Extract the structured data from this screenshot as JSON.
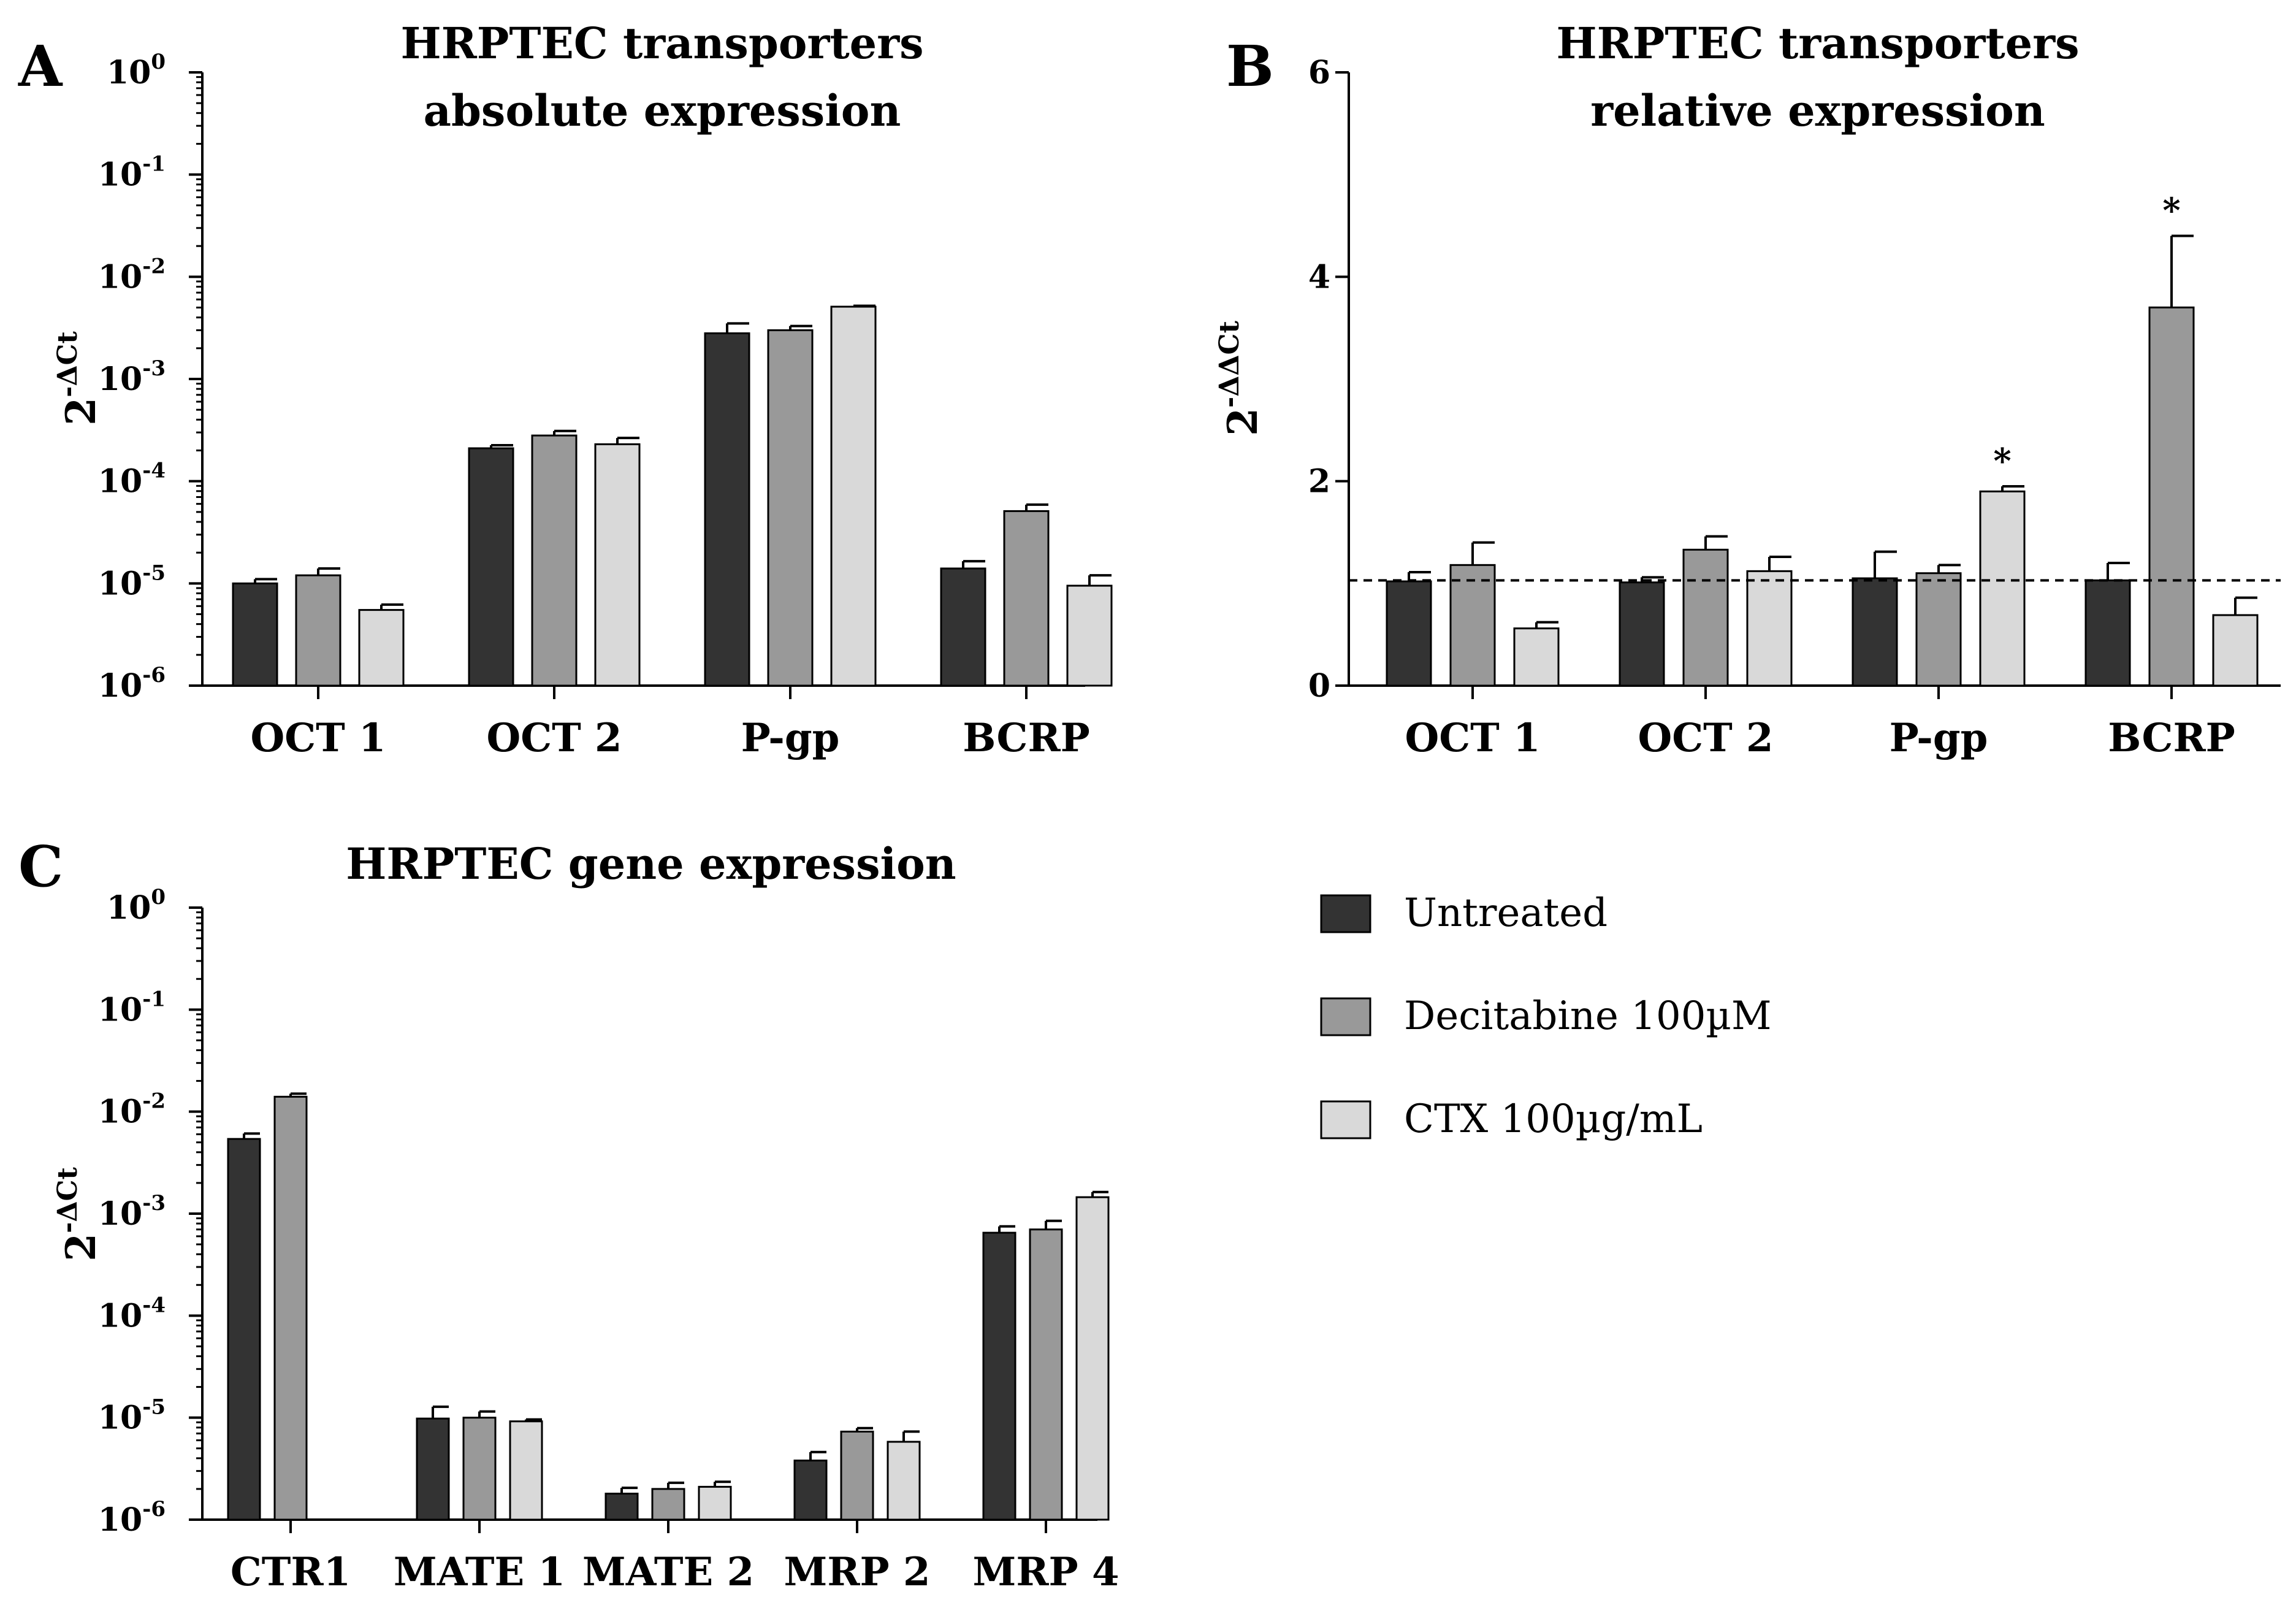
{
  "legend": [
    {
      "label": "Untreated",
      "color": "#333333"
    },
    {
      "label": "Decitabine 100µM",
      "color": "#999999"
    },
    {
      "label": "CTX 100µg/mL",
      "color": "#d9d9d9"
    }
  ],
  "chart_data": [
    {
      "panel": "A",
      "type": "bar",
      "title": [
        "HRPTEC transporters",
        "absolute expression"
      ],
      "ylabel": {
        "base": "2",
        "sup": "-ΔCt"
      },
      "yscale": "log",
      "ylim": [
        1e-06,
        1
      ],
      "yticks": [
        {
          "base": "10",
          "exp": "0"
        },
        {
          "base": "10",
          "exp": "-1"
        },
        {
          "base": "10",
          "exp": "-2"
        },
        {
          "base": "10",
          "exp": "-3"
        },
        {
          "base": "10",
          "exp": "-4"
        },
        {
          "base": "10",
          "exp": "-5"
        },
        {
          "base": "10",
          "exp": "-6"
        }
      ],
      "categories": [
        "OCT 1",
        "OCT 2",
        "P-gp",
        "BCRP"
      ],
      "series": [
        {
          "name": "Untreated",
          "values": [
            1e-05,
            0.00021,
            0.0028,
            1.4e-05
          ],
          "errors": [
            1e-06,
            1.5e-05,
            0.0007,
            2.5e-06
          ]
        },
        {
          "name": "Decitabine 100µM",
          "values": [
            1.2e-05,
            0.00028,
            0.003,
            5.1e-05
          ],
          "errors": [
            2e-06,
            3e-05,
            0.0003,
            8e-06
          ]
        },
        {
          "name": "CTX 100µg/mL",
          "values": [
            5.5e-06,
            0.00023,
            0.0051,
            9.5e-06
          ],
          "errors": [
            7e-07,
            3.5e-05,
            0.0001,
            2.5e-06
          ]
        }
      ],
      "annotations": [],
      "reference_line": null
    },
    {
      "panel": "B",
      "type": "bar",
      "title": [
        "HRPTEC transporters",
        "relative expression"
      ],
      "ylabel": {
        "base": "2",
        "sup": "-ΔΔCt"
      },
      "yscale": "linear",
      "ylim": [
        0,
        6
      ],
      "yticks": [
        {
          "base": "0",
          "exp": ""
        },
        {
          "base": "2",
          "exp": ""
        },
        {
          "base": "4",
          "exp": ""
        },
        {
          "base": "6",
          "exp": ""
        }
      ],
      "categories": [
        "OCT 1",
        "OCT 2",
        "P-gp",
        "BCRP"
      ],
      "series": [
        {
          "name": "Untreated",
          "values": [
            1.02,
            1.01,
            1.05,
            1.03
          ],
          "errors": [
            0.09,
            0.05,
            0.26,
            0.17
          ]
        },
        {
          "name": "Decitabine 100µM",
          "values": [
            1.18,
            1.33,
            1.1,
            3.7
          ],
          "errors": [
            0.22,
            0.13,
            0.08,
            0.7
          ]
        },
        {
          "name": "CTX 100µg/mL",
          "values": [
            0.56,
            1.12,
            1.9,
            0.69
          ],
          "errors": [
            0.06,
            0.14,
            0.05,
            0.17
          ]
        }
      ],
      "annotations": [
        {
          "category": "P-gp",
          "series": "CTX 100µg/mL",
          "text": "*"
        },
        {
          "category": "BCRP",
          "series": "Decitabine 100µM",
          "text": "*"
        }
      ],
      "reference_line": {
        "y": 1.03,
        "style": "dashed"
      }
    },
    {
      "panel": "C",
      "type": "bar",
      "title": [
        "HRPTEC gene expression"
      ],
      "ylabel": {
        "base": "2",
        "sup": "-ΔCt"
      },
      "yscale": "log",
      "ylim": [
        1e-06,
        1
      ],
      "yticks": [
        {
          "base": "10",
          "exp": "0"
        },
        {
          "base": "10",
          "exp": "-1"
        },
        {
          "base": "10",
          "exp": "-2"
        },
        {
          "base": "10",
          "exp": "-3"
        },
        {
          "base": "10",
          "exp": "-4"
        },
        {
          "base": "10",
          "exp": "-5"
        },
        {
          "base": "10",
          "exp": "-6"
        }
      ],
      "categories": [
        "CTR1",
        "MATE 1",
        "MATE 2",
        "MRP 2",
        "MRP 4"
      ],
      "series": [
        {
          "name": "Untreated",
          "values": [
            0.0054,
            9.8e-06,
            1.8e-06,
            3.8e-06,
            0.00065
          ],
          "errors": [
            0.0007,
            3e-06,
            2.5e-07,
            8e-07,
            0.0001
          ]
        },
        {
          "name": "Decitabine 100µM",
          "values": [
            0.014,
            1e-05,
            2e-06,
            7.3e-06,
            0.0007
          ],
          "errors": [
            0.001,
            1.5e-06,
            3e-07,
            6e-07,
            0.00015
          ]
        },
        {
          "name": "CTX 100µg/mL",
          "values": [
            null,
            9.2e-06,
            2.1e-06,
            5.8e-06,
            0.00145
          ],
          "errors": [
            null,
            4e-07,
            2.5e-07,
            1.5e-06,
            0.00018
          ]
        }
      ],
      "annotations": [],
      "reference_line": null
    }
  ]
}
